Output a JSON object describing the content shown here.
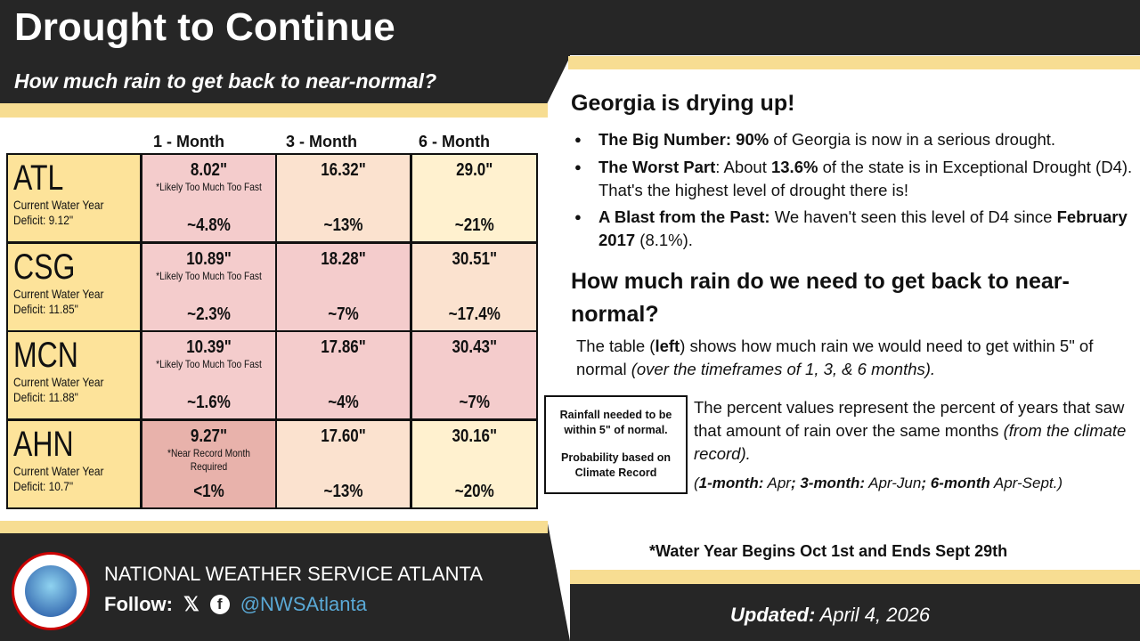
{
  "header": {
    "title": "Drought to Continue",
    "subtitle": "How much rain to get back to near-normal?"
  },
  "table": {
    "columns": [
      "1 - Month",
      "3 - Month",
      "6 - Month"
    ],
    "rows": [
      {
        "code": "ATL",
        "label": "Current Water Year",
        "deficit": "Deficit: 9.12\"",
        "cells": [
          {
            "amount": "8.02\"",
            "note": "*Likely Too Much Too Fast",
            "pct": "~4.8%",
            "color": "#f4cccc"
          },
          {
            "amount": "16.32\"",
            "note": "",
            "pct": "~13%",
            "color": "#fbe2cf"
          },
          {
            "amount": "29.0\"",
            "note": "",
            "pct": "~21%",
            "color": "#fff1cf"
          }
        ]
      },
      {
        "code": "CSG",
        "label": "Current Water Year",
        "deficit": "Deficit: 11.85\"",
        "cells": [
          {
            "amount": "10.89\"",
            "note": "*Likely Too Much Too Fast",
            "pct": "~2.3%",
            "color": "#f4cccc"
          },
          {
            "amount": "18.28\"",
            "note": "",
            "pct": "~7%",
            "color": "#f4cccc"
          },
          {
            "amount": "30.51\"",
            "note": "",
            "pct": "~17.4%",
            "color": "#fbe2cf"
          }
        ]
      },
      {
        "code": "MCN",
        "label": "Current Water Year",
        "deficit": "Deficit: 11.88\"",
        "cells": [
          {
            "amount": "10.39\"",
            "note": "*Likely Too Much Too Fast",
            "pct": "~1.6%",
            "color": "#f4cccc"
          },
          {
            "amount": "17.86\"",
            "note": "",
            "pct": "~4%",
            "color": "#f4cccc"
          },
          {
            "amount": "30.43\"",
            "note": "",
            "pct": "~7%",
            "color": "#f4cccc"
          }
        ]
      },
      {
        "code": "AHN",
        "label": "Current Water Year",
        "deficit": "Deficit: 10.7\"",
        "cells": [
          {
            "amount": "9.27\"",
            "note": "*Near Record Month Required",
            "pct": "<1%",
            "color": "#e8b2ab"
          },
          {
            "amount": "17.60\"",
            "note": "",
            "pct": "~13%",
            "color": "#fbe2cf"
          },
          {
            "amount": "30.16\"",
            "note": "",
            "pct": "~20%",
            "color": "#fff1cf"
          }
        ]
      }
    ]
  },
  "right": {
    "heading1": "Georgia is drying up!",
    "bullets": [
      {
        "bold": "The Big Number: 90%",
        "text": " of Georgia is now in a serious drought."
      },
      {
        "bold": "The Worst Part",
        "text": ": About ",
        "bold2": "13.6%",
        "text2": " of the state is in Exceptional Drought (D4). That's the highest level of drought there is!"
      },
      {
        "bold": "A Blast from the Past:",
        "text": " We haven't seen this level of D4 since ",
        "bold2": "February 2017",
        "text2": " (8.1%)."
      }
    ],
    "heading2": "How much rain do we need to get back to near-normal?",
    "para1a": "The table (",
    "para1b": "left",
    "para1c": ") shows how much rain we would need to get within 5\" of normal ",
    "para1d": "(over the timeframes of 1, 3, & 6 months).",
    "legend1": "Rainfall needed to be within 5\" of normal.",
    "legend2": "Probability based on Climate Record",
    "para2": "The percent values represent the percent of years that saw that amount of rain over the same months ",
    "para2i": "(from the climate record).",
    "periods": {
      "open": "(",
      "b1": "1-month:",
      "t1": " Apr",
      "b2": "; 3-month:",
      "t2": " Apr-Jun",
      "b3": "; 6-month",
      "t3": " Apr-Sept.)"
    },
    "footnote": "*Water Year Begins Oct 1st and Ends Sept 29th"
  },
  "footer": {
    "org": "NATIONAL WEATHER SERVICE ATLANTA",
    "follow": "Follow:",
    "x_icon": "𝕏",
    "fb_icon": "f",
    "handle": "@NWSAtlanta",
    "updated_label": "Updated:",
    "updated_date": " April 4, 2026",
    "logo_text": "NATIONAL WEATHER SERVICE",
    "colors": {
      "dark": "#262626",
      "accent": "#f7dd92",
      "handle": "#5aa9d6"
    }
  }
}
